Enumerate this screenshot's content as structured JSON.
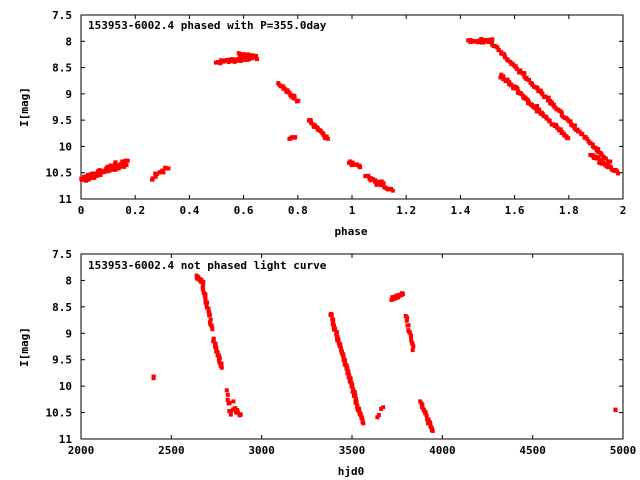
{
  "chart_data": [
    {
      "type": "scatter",
      "title": "153953-6002.4 phased with P=355.0day",
      "xlabel": "phase",
      "ylabel": "I[mag]",
      "xlim": [
        0,
        2
      ],
      "ylim": [
        7.5,
        11
      ],
      "y_inverted": true,
      "x_ticks": [
        0,
        0.2,
        0.4,
        0.6,
        0.8,
        1,
        1.2,
        1.4,
        1.6,
        1.8,
        2
      ],
      "x_tick_labels": [
        "0",
        "0.2",
        "0.4",
        "0.6",
        "0.8",
        "1",
        "1.2",
        "1.4",
        "1.6",
        "1.8",
        "2"
      ],
      "y_ticks": [
        7.5,
        8,
        8.5,
        9,
        9.5,
        10,
        10.5,
        11
      ],
      "y_tick_labels": [
        "7.5",
        "8",
        "8.5",
        "9",
        "9.5",
        "10",
        "10.5",
        "11"
      ],
      "grid": false,
      "point_color": "#ff0000",
      "segments": [
        {
          "x": [
            0.0,
            0.17
          ],
          "y": [
            10.65,
            10.3
          ],
          "jitter": 0.1,
          "n": 70
        },
        {
          "x": [
            0.26,
            0.32
          ],
          "y": [
            10.6,
            10.4
          ],
          "jitter": 0.06,
          "n": 12
        },
        {
          "x": [
            0.5,
            0.65
          ],
          "y": [
            8.4,
            8.3
          ],
          "jitter": 0.05,
          "n": 50
        },
        {
          "x": [
            0.58,
            0.64
          ],
          "y": [
            8.25,
            8.28
          ],
          "jitter": 0.03,
          "n": 15
        },
        {
          "x": [
            0.73,
            0.8
          ],
          "y": [
            8.8,
            9.15
          ],
          "jitter": 0.05,
          "n": 25
        },
        {
          "x": [
            0.77,
            0.79
          ],
          "y": [
            9.85,
            9.82
          ],
          "jitter": 0.03,
          "n": 6
        },
        {
          "x": [
            0.84,
            0.91
          ],
          "y": [
            9.5,
            9.85
          ],
          "jitter": 0.05,
          "n": 25
        },
        {
          "x": [
            0.99,
            1.03
          ],
          "y": [
            10.3,
            10.4
          ],
          "jitter": 0.05,
          "n": 15
        },
        {
          "x": [
            1.05,
            1.15
          ],
          "y": [
            10.55,
            10.85
          ],
          "jitter": 0.06,
          "n": 25
        },
        {
          "x": [
            1.43,
            1.52
          ],
          "y": [
            8.0,
            7.98
          ],
          "jitter": 0.04,
          "n": 30
        },
        {
          "x": [
            1.52,
            1.95
          ],
          "y": [
            8.05,
            10.3
          ],
          "jitter": 0.05,
          "n": 110
        },
        {
          "x": [
            1.55,
            1.8
          ],
          "y": [
            8.65,
            9.85
          ],
          "jitter": 0.05,
          "n": 70
        },
        {
          "x": [
            1.88,
            1.98
          ],
          "y": [
            10.15,
            10.5
          ],
          "jitter": 0.08,
          "n": 30
        }
      ]
    },
    {
      "type": "scatter",
      "title": "153953-6002.4 not phased light curve",
      "xlabel": "hjd0",
      "ylabel": "I[mag]",
      "xlim": [
        2000,
        5000
      ],
      "ylim": [
        7.5,
        11
      ],
      "y_inverted": true,
      "x_ticks": [
        2000,
        2500,
        3000,
        3500,
        4000,
        4500,
        5000
      ],
      "x_tick_labels": [
        "2000",
        "2500",
        "3000",
        "3500",
        "4000",
        "4500",
        "5000"
      ],
      "y_ticks": [
        7.5,
        8,
        8.5,
        9,
        9.5,
        10,
        10.5,
        11
      ],
      "y_tick_labels": [
        "7.5",
        "8",
        "8.5",
        "9",
        "9.5",
        "10",
        "10.5",
        "11"
      ],
      "grid": false,
      "point_color": "#ff0000",
      "segments": [
        {
          "x": [
            2400,
            2402
          ],
          "y": [
            9.82,
            9.85
          ],
          "jitter": 0.03,
          "n": 3
        },
        {
          "x": [
            2640,
            2675
          ],
          "y": [
            7.92,
            8.05
          ],
          "jitter": 0.04,
          "n": 18
        },
        {
          "x": [
            2675,
            2725
          ],
          "y": [
            8.1,
            8.9
          ],
          "jitter": 0.05,
          "n": 25
        },
        {
          "x": [
            2730,
            2780
          ],
          "y": [
            9.1,
            9.65
          ],
          "jitter": 0.05,
          "n": 20
        },
        {
          "x": [
            2810,
            2830
          ],
          "y": [
            10.1,
            10.5
          ],
          "jitter": 0.08,
          "n": 8
        },
        {
          "x": [
            2840,
            2880
          ],
          "y": [
            10.4,
            10.55
          ],
          "jitter": 0.12,
          "n": 14
        },
        {
          "x": [
            3380,
            3560
          ],
          "y": [
            8.62,
            10.7
          ],
          "jitter": 0.05,
          "n": 90
        },
        {
          "x": [
            3640,
            3670
          ],
          "y": [
            10.6,
            10.4
          ],
          "jitter": 0.05,
          "n": 4
        },
        {
          "x": [
            3720,
            3780
          ],
          "y": [
            8.35,
            8.25
          ],
          "jitter": 0.04,
          "n": 25
        },
        {
          "x": [
            3800,
            3840
          ],
          "y": [
            8.7,
            9.3
          ],
          "jitter": 0.05,
          "n": 15
        },
        {
          "x": [
            3880,
            3950
          ],
          "y": [
            10.3,
            10.85
          ],
          "jitter": 0.05,
          "n": 20
        },
        {
          "x": [
            4960,
            4962
          ],
          "y": [
            10.45,
            10.45
          ],
          "jitter": 0.01,
          "n": 2
        }
      ]
    }
  ]
}
